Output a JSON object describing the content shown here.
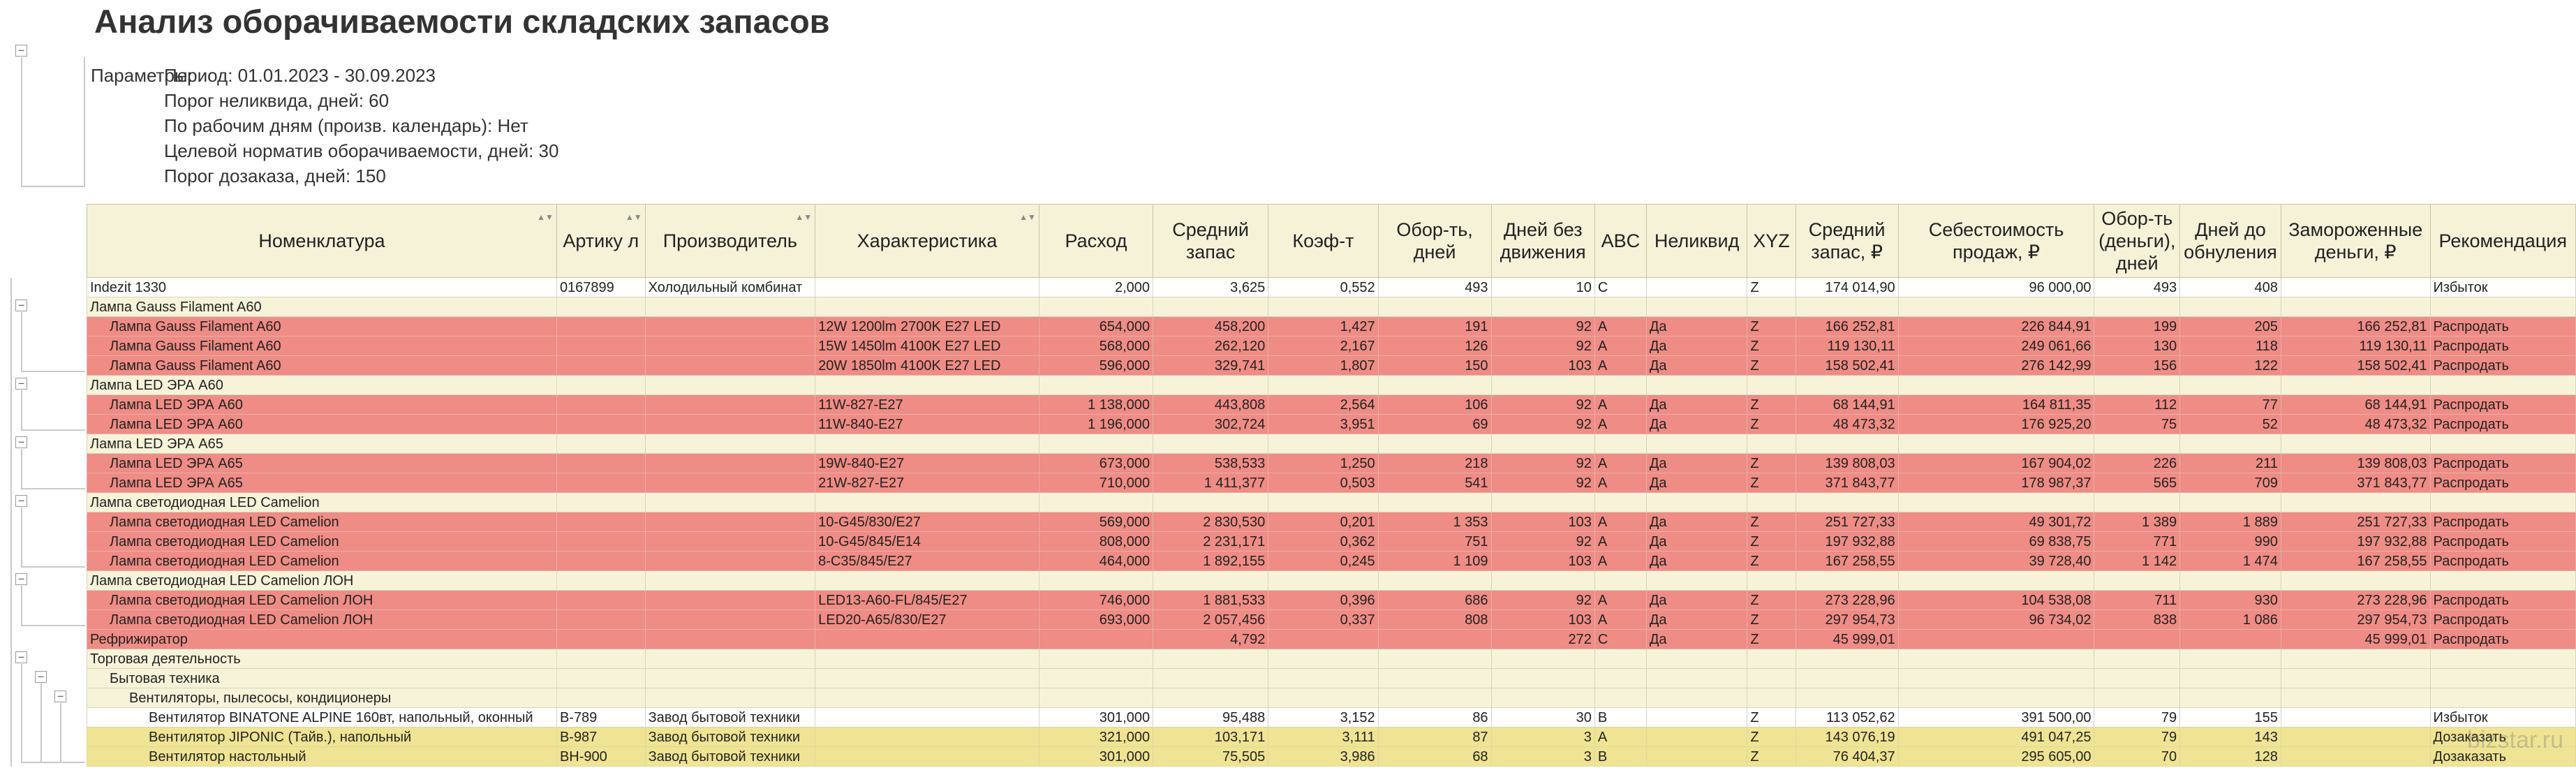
{
  "report": {
    "title": "Анализ оборачиваемости складских запасов",
    "params_label": "Параметры:",
    "params": [
      "Период: 01.01.2023 - 30.09.2023",
      "Порог неликвида, дней: 60",
      "По рабочим дням (произв. календарь): Нет",
      "Целевой норматив оборачиваемости, дней: 30",
      "Порог дозаказа, дней: 150"
    ]
  },
  "table": {
    "headers": {
      "nomenclature": "Номенклатура",
      "article": "Артику л",
      "manufacturer": "Производитель",
      "characteristic": "Характеристика",
      "consumption": "Расход",
      "avg_stock": "Средний запас",
      "coef": "Коэф-т",
      "turnover_days": "Обор-ть, дней",
      "days_no_move": "Дней без движения",
      "abc": "ABC",
      "illiquid": "Неликвид",
      "xyz": "XYZ",
      "avg_stock_rub": "Средний запас, ₽",
      "cost_of_sales": "Себестоимость продаж, ₽",
      "turnover_money": "Обор-ть (деньги), дней",
      "days_to_zero": "Дней до обнуления",
      "frozen_money": "Замороженные деньги, ₽",
      "recommendation": "Рекомендация"
    },
    "rows": [
      {
        "type": "white",
        "lvl": 0,
        "name": "Indezit 1330",
        "article": "0167899",
        "manufacturer": "Холодильный комбинат",
        "characteristic": "",
        "consumption": "2,000",
        "avg_stock": "3,625",
        "coef": "0,552",
        "turnover_days": "493",
        "days_no_move": "10",
        "abc": "C",
        "illiquid": "",
        "xyz": "Z",
        "avg_stock_rub": "174 014,90",
        "cost_of_sales": "96 000,00",
        "turnover_money": "493",
        "days_to_zero": "408",
        "frozen_money": "",
        "recommendation": "Избыток"
      },
      {
        "type": "group",
        "lvl": 0,
        "name": "Лампа Gauss Filament A60"
      },
      {
        "type": "red",
        "lvl": 1,
        "name": "Лампа Gauss Filament A60",
        "article": "",
        "manufacturer": "",
        "characteristic": "12W 1200lm 2700K E27 LED",
        "consumption": "654,000",
        "avg_stock": "458,200",
        "coef": "1,427",
        "turnover_days": "191",
        "days_no_move": "92",
        "abc": "A",
        "illiquid": "Да",
        "xyz": "Z",
        "avg_stock_rub": "166 252,81",
        "cost_of_sales": "226 844,91",
        "turnover_money": "199",
        "days_to_zero": "205",
        "frozen_money": "166 252,81",
        "recommendation": "Распродать"
      },
      {
        "type": "red",
        "lvl": 1,
        "name": "Лампа Gauss Filament A60",
        "article": "",
        "manufacturer": "",
        "characteristic": "15W 1450lm 4100K E27 LED",
        "consumption": "568,000",
        "avg_stock": "262,120",
        "coef": "2,167",
        "turnover_days": "126",
        "days_no_move": "92",
        "abc": "A",
        "illiquid": "Да",
        "xyz": "Z",
        "avg_stock_rub": "119 130,11",
        "cost_of_sales": "249 061,66",
        "turnover_money": "130",
        "days_to_zero": "118",
        "frozen_money": "119 130,11",
        "recommendation": "Распродать"
      },
      {
        "type": "red",
        "lvl": 1,
        "name": "Лампа Gauss Filament A60",
        "article": "",
        "manufacturer": "",
        "characteristic": "20W 1850lm 4100K E27 LED",
        "consumption": "596,000",
        "avg_stock": "329,741",
        "coef": "1,807",
        "turnover_days": "150",
        "days_no_move": "103",
        "abc": "A",
        "illiquid": "Да",
        "xyz": "Z",
        "avg_stock_rub": "158 502,41",
        "cost_of_sales": "276 142,99",
        "turnover_money": "156",
        "days_to_zero": "122",
        "frozen_money": "158 502,41",
        "recommendation": "Распродать"
      },
      {
        "type": "group",
        "lvl": 0,
        "name": "Лампа LED ЭРА A60"
      },
      {
        "type": "red",
        "lvl": 1,
        "name": "Лампа LED ЭРА A60",
        "article": "",
        "manufacturer": "",
        "characteristic": "11W-827-E27",
        "consumption": "1 138,000",
        "avg_stock": "443,808",
        "coef": "2,564",
        "turnover_days": "106",
        "days_no_move": "92",
        "abc": "A",
        "illiquid": "Да",
        "xyz": "Z",
        "avg_stock_rub": "68 144,91",
        "cost_of_sales": "164 811,35",
        "turnover_money": "112",
        "days_to_zero": "77",
        "frozen_money": "68 144,91",
        "recommendation": "Распродать"
      },
      {
        "type": "red",
        "lvl": 1,
        "name": "Лампа LED ЭРА A60",
        "article": "",
        "manufacturer": "",
        "characteristic": "11W-840-E27",
        "consumption": "1 196,000",
        "avg_stock": "302,724",
        "coef": "3,951",
        "turnover_days": "69",
        "days_no_move": "92",
        "abc": "A",
        "illiquid": "Да",
        "xyz": "Z",
        "avg_stock_rub": "48 473,32",
        "cost_of_sales": "176 925,20",
        "turnover_money": "75",
        "days_to_zero": "52",
        "frozen_money": "48 473,32",
        "recommendation": "Распродать"
      },
      {
        "type": "group",
        "lvl": 0,
        "name": "Лампа LED ЭРА A65"
      },
      {
        "type": "red",
        "lvl": 1,
        "name": "Лампа LED ЭРА A65",
        "article": "",
        "manufacturer": "",
        "characteristic": "19W-840-E27",
        "consumption": "673,000",
        "avg_stock": "538,533",
        "coef": "1,250",
        "turnover_days": "218",
        "days_no_move": "92",
        "abc": "A",
        "illiquid": "Да",
        "xyz": "Z",
        "avg_stock_rub": "139 808,03",
        "cost_of_sales": "167 904,02",
        "turnover_money": "226",
        "days_to_zero": "211",
        "frozen_money": "139 808,03",
        "recommendation": "Распродать"
      },
      {
        "type": "red",
        "lvl": 1,
        "name": "Лампа LED ЭРА A65",
        "article": "",
        "manufacturer": "",
        "characteristic": "21W-827-E27",
        "consumption": "710,000",
        "avg_stock": "1 411,377",
        "coef": "0,503",
        "turnover_days": "541",
        "days_no_move": "92",
        "abc": "A",
        "illiquid": "Да",
        "xyz": "Z",
        "avg_stock_rub": "371 843,77",
        "cost_of_sales": "178 987,37",
        "turnover_money": "565",
        "days_to_zero": "709",
        "frozen_money": "371 843,77",
        "recommendation": "Распродать"
      },
      {
        "type": "group",
        "lvl": 0,
        "name": "Лампа светодиодная LED Camelion"
      },
      {
        "type": "red",
        "lvl": 1,
        "name": "Лампа светодиодная LED Camelion",
        "article": "",
        "manufacturer": "",
        "characteristic": "10-G45/830/E27",
        "consumption": "569,000",
        "avg_stock": "2 830,530",
        "coef": "0,201",
        "turnover_days": "1 353",
        "days_no_move": "103",
        "abc": "A",
        "illiquid": "Да",
        "xyz": "Z",
        "avg_stock_rub": "251 727,33",
        "cost_of_sales": "49 301,72",
        "turnover_money": "1 389",
        "days_to_zero": "1 889",
        "frozen_money": "251 727,33",
        "recommendation": "Распродать"
      },
      {
        "type": "red",
        "lvl": 1,
        "name": "Лампа светодиодная LED Camelion",
        "article": "",
        "manufacturer": "",
        "characteristic": "10-G45/845/E14",
        "consumption": "808,000",
        "avg_stock": "2 231,171",
        "coef": "0,362",
        "turnover_days": "751",
        "days_no_move": "92",
        "abc": "A",
        "illiquid": "Да",
        "xyz": "Z",
        "avg_stock_rub": "197 932,88",
        "cost_of_sales": "69 838,75",
        "turnover_money": "771",
        "days_to_zero": "990",
        "frozen_money": "197 932,88",
        "recommendation": "Распродать"
      },
      {
        "type": "red",
        "lvl": 1,
        "name": "Лампа светодиодная LED Camelion",
        "article": "",
        "manufacturer": "",
        "characteristic": "8-C35/845/E27",
        "consumption": "464,000",
        "avg_stock": "1 892,155",
        "coef": "0,245",
        "turnover_days": "1 109",
        "days_no_move": "103",
        "abc": "A",
        "illiquid": "Да",
        "xyz": "Z",
        "avg_stock_rub": "167 258,55",
        "cost_of_sales": "39 728,40",
        "turnover_money": "1 142",
        "days_to_zero": "1 474",
        "frozen_money": "167 258,55",
        "recommendation": "Распродать"
      },
      {
        "type": "group",
        "lvl": 0,
        "name": "Лампа светодиодная LED Camelion ЛОН"
      },
      {
        "type": "red",
        "lvl": 1,
        "name": "Лампа светодиодная LED Camelion ЛОН",
        "article": "",
        "manufacturer": "",
        "characteristic": "LED13-A60-FL/845/E27",
        "consumption": "746,000",
        "avg_stock": "1 881,533",
        "coef": "0,396",
        "turnover_days": "686",
        "days_no_move": "92",
        "abc": "A",
        "illiquid": "Да",
        "xyz": "Z",
        "avg_stock_rub": "273 228,96",
        "cost_of_sales": "104 538,08",
        "turnover_money": "711",
        "days_to_zero": "930",
        "frozen_money": "273 228,96",
        "recommendation": "Распродать"
      },
      {
        "type": "red",
        "lvl": 1,
        "name": "Лампа светодиодная LED Camelion ЛОН",
        "article": "",
        "manufacturer": "",
        "characteristic": "LED20-A65/830/E27",
        "consumption": "693,000",
        "avg_stock": "2 057,456",
        "coef": "0,337",
        "turnover_days": "808",
        "days_no_move": "103",
        "abc": "A",
        "illiquid": "Да",
        "xyz": "Z",
        "avg_stock_rub": "297 954,73",
        "cost_of_sales": "96 734,02",
        "turnover_money": "838",
        "days_to_zero": "1 086",
        "frozen_money": "297 954,73",
        "recommendation": "Распродать"
      },
      {
        "type": "red",
        "lvl": 0,
        "name": "Рефрижиратор",
        "article": "",
        "manufacturer": "",
        "characteristic": "",
        "consumption": "",
        "avg_stock": "4,792",
        "coef": "",
        "turnover_days": "",
        "days_no_move": "272",
        "abc": "C",
        "illiquid": "Да",
        "xyz": "Z",
        "avg_stock_rub": "45 999,01",
        "cost_of_sales": "",
        "turnover_money": "",
        "days_to_zero": "",
        "frozen_money": "45 999,01",
        "recommendation": "Распродать"
      },
      {
        "type": "group",
        "lvl": 0,
        "name": "Торговая деятельность"
      },
      {
        "type": "group",
        "lvl": 1,
        "name": "Бытовая техника"
      },
      {
        "type": "group",
        "lvl": 2,
        "name": "Вентиляторы, пылесосы, кондиционеры"
      },
      {
        "type": "white",
        "lvl": 3,
        "name": "Вентилятор BINATONE ALPINE 160вт, напольный, оконный",
        "article": "B-789",
        "manufacturer": "Завод бытовой техники",
        "characteristic": "",
        "consumption": "301,000",
        "avg_stock": "95,488",
        "coef": "3,152",
        "turnover_days": "86",
        "days_no_move": "30",
        "abc": "B",
        "illiquid": "",
        "xyz": "Z",
        "avg_stock_rub": "113 052,62",
        "cost_of_sales": "391 500,00",
        "turnover_money": "79",
        "days_to_zero": "155",
        "frozen_money": "",
        "recommendation": "Избыток"
      },
      {
        "type": "yellow",
        "lvl": 3,
        "name": "Вентилятор JIPONIC (Тайв.), напольный",
        "article": "B-987",
        "manufacturer": "Завод бытовой техники",
        "characteristic": "",
        "consumption": "321,000",
        "avg_stock": "103,171",
        "coef": "3,111",
        "turnover_days": "87",
        "days_no_move": "3",
        "abc": "A",
        "illiquid": "",
        "xyz": "Z",
        "avg_stock_rub": "143 076,19",
        "cost_of_sales": "491 047,25",
        "turnover_money": "79",
        "days_to_zero": "143",
        "frozen_money": "",
        "recommendation": "Дозаказать"
      },
      {
        "type": "yellow",
        "lvl": 3,
        "name": "Вентилятор настольный",
        "article": "BH-900",
        "manufacturer": "Завод бытовой техники",
        "characteristic": "",
        "consumption": "301,000",
        "avg_stock": "75,505",
        "coef": "3,986",
        "turnover_days": "68",
        "days_no_move": "3",
        "abc": "B",
        "illiquid": "",
        "xyz": "Z",
        "avg_stock_rub": "76 404,37",
        "cost_of_sales": "295 605,00",
        "turnover_money": "70",
        "days_to_zero": "128",
        "frozen_money": "",
        "recommendation": "Дозаказать"
      }
    ]
  },
  "watermark": "bizstar.ru"
}
